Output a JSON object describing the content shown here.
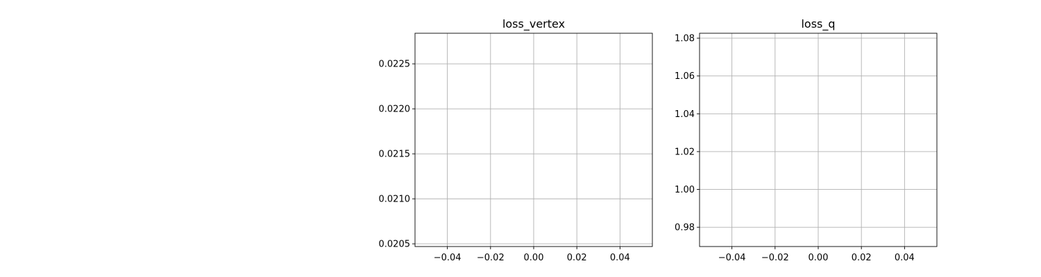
{
  "chart_data": [
    {
      "type": "line",
      "title": "loss_vertex",
      "xlabel": "",
      "ylabel": "",
      "grid": true,
      "xlim": [
        -0.055,
        0.055
      ],
      "ylim": [
        0.02047,
        0.02284
      ],
      "xticks": [
        -0.04,
        -0.02,
        0.0,
        0.02,
        0.04
      ],
      "xtick_labels": [
        "−0.04",
        "−0.02",
        "0.00",
        "0.02",
        "0.04"
      ],
      "yticks": [
        0.0205,
        0.021,
        0.0215,
        0.022,
        0.0225
      ],
      "ytick_labels": [
        "0.0205",
        "0.0210",
        "0.0215",
        "0.0220",
        "0.0225"
      ],
      "series": []
    },
    {
      "type": "line",
      "title": "loss_q",
      "xlabel": "",
      "ylabel": "",
      "grid": true,
      "xlim": [
        -0.055,
        0.055
      ],
      "ylim": [
        0.9698,
        1.0826
      ],
      "xticks": [
        -0.04,
        -0.02,
        0.0,
        0.02,
        0.04
      ],
      "xtick_labels": [
        "−0.04",
        "−0.02",
        "0.00",
        "0.02",
        "0.04"
      ],
      "yticks": [
        0.98,
        1.0,
        1.02,
        1.04,
        1.06,
        1.08
      ],
      "ytick_labels": [
        "0.98",
        "1.00",
        "1.02",
        "1.04",
        "1.06",
        "1.08"
      ],
      "series": []
    }
  ]
}
